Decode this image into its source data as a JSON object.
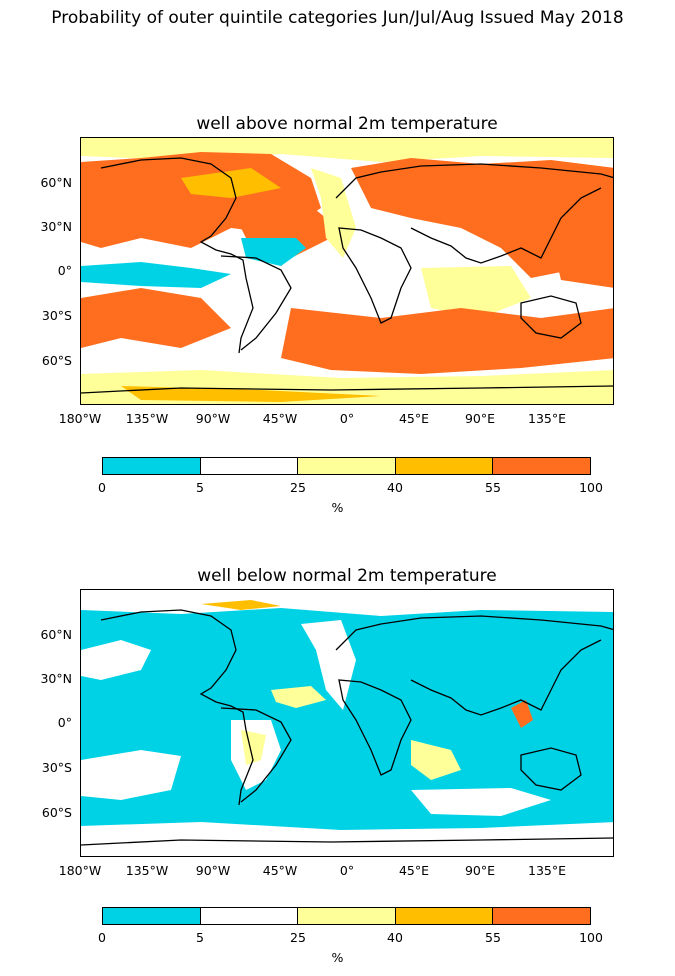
{
  "title": "Probability of outer quintile categories Jun/Jul/Aug Issued May 2018",
  "colors": {
    "bin_0_5": "#00d2e6",
    "bin_5_25": "#ffffff",
    "bin_25_40": "#ffff99",
    "bin_40_55": "#ffbf00",
    "bin_55_100": "#ff6e1e",
    "coast": "#000000"
  },
  "panels": [
    {
      "title": "well above normal 2m temperature",
      "dominant_bin": "55-100",
      "y_ticks": [
        "60°N",
        "30°N",
        "0°",
        "30°S",
        "60°S"
      ],
      "x_ticks": [
        "180°W",
        "135°W",
        "90°W",
        "45°W",
        "0°",
        "45°E",
        "90°E",
        "135°E"
      ],
      "colorbar": {
        "boundaries": [
          "0",
          "5",
          "25",
          "40",
          "55",
          "100"
        ],
        "unit": "%"
      }
    },
    {
      "title": "well below normal 2m temperature",
      "dominant_bin": "0-5",
      "y_ticks": [
        "60°N",
        "30°N",
        "0°",
        "30°S",
        "60°S"
      ],
      "x_ticks": [
        "180°W",
        "135°W",
        "90°W",
        "45°W",
        "0°",
        "45°E",
        "90°E",
        "135°E"
      ],
      "colorbar": {
        "boundaries": [
          "0",
          "5",
          "25",
          "40",
          "55",
          "100"
        ],
        "unit": "%"
      }
    }
  ]
}
